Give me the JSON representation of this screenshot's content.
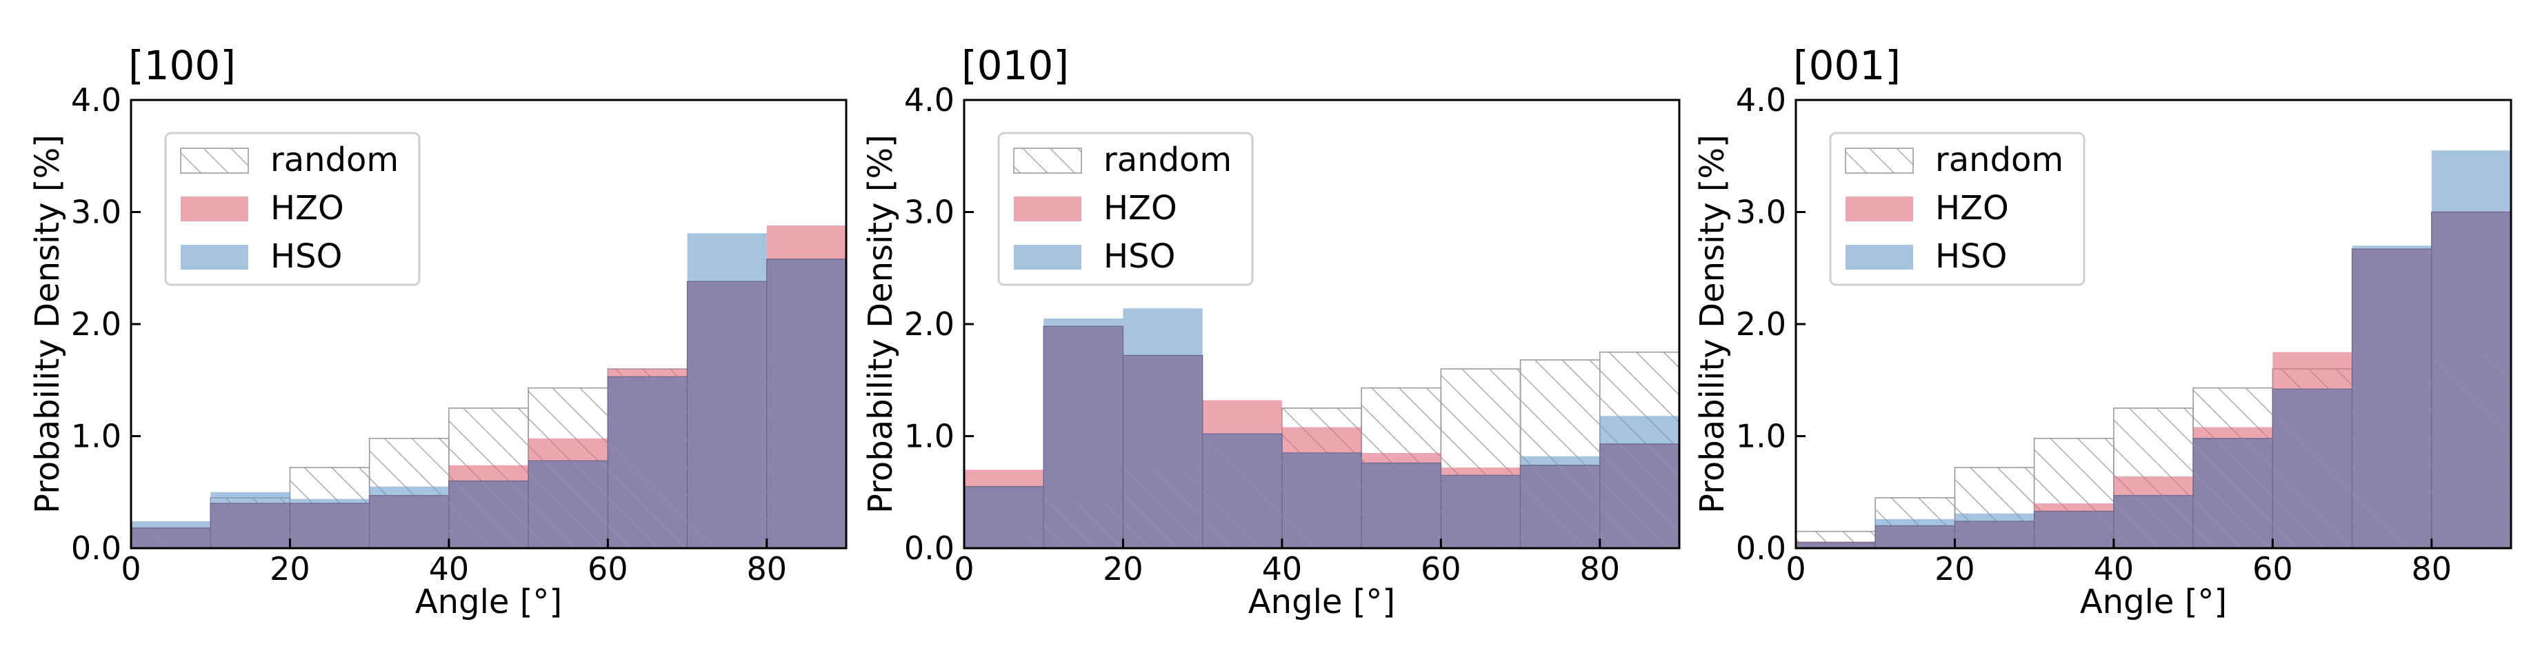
{
  "colors": {
    "random_stroke": "#9a9a9a",
    "hzo": "#e0707f",
    "hso": "#6fa0cc",
    "overlap": "#8a84ac",
    "overlap_edge": "#6e6a8e"
  },
  "chart_data": [
    {
      "type": "bar",
      "title": "[100]",
      "xlabel": "Angle [°]",
      "ylabel": "Probability Density [%]",
      "xlim": [
        0,
        90
      ],
      "ylim": [
        0,
        4
      ],
      "xticks": [
        "0",
        "20",
        "40",
        "60",
        "80"
      ],
      "yticks": [
        "0.0",
        "1.0",
        "2.0",
        "3.0",
        "4.0"
      ],
      "legend": [
        "random",
        "HZO",
        "HSO"
      ],
      "legend_position": "upper-left",
      "bin_edges": [
        0,
        10,
        20,
        30,
        40,
        50,
        60,
        70,
        80,
        90
      ],
      "series": [
        {
          "name": "random",
          "values": [
            0.15,
            0.45,
            0.72,
            0.98,
            1.25,
            1.43,
            1.6,
            1.68,
            1.75
          ]
        },
        {
          "name": "HZO",
          "values": [
            0.18,
            0.4,
            0.4,
            0.47,
            0.74,
            0.98,
            1.6,
            2.38,
            2.88
          ]
        },
        {
          "name": "HSO",
          "values": [
            0.24,
            0.5,
            0.44,
            0.55,
            0.6,
            0.78,
            1.53,
            2.81,
            2.58
          ]
        }
      ]
    },
    {
      "type": "bar",
      "title": "[010]",
      "xlabel": "Angle [°]",
      "ylabel": "Probability Density [%]",
      "xlim": [
        0,
        90
      ],
      "ylim": [
        0,
        4
      ],
      "xticks": [
        "0",
        "20",
        "40",
        "60",
        "80"
      ],
      "yticks": [
        "0.0",
        "1.0",
        "2.0",
        "3.0",
        "4.0"
      ],
      "legend": [
        "random",
        "HZO",
        "HSO"
      ],
      "legend_position": "upper-left",
      "bin_edges": [
        0,
        10,
        20,
        30,
        40,
        50,
        60,
        70,
        80,
        90
      ],
      "series": [
        {
          "name": "random",
          "values": [
            0.15,
            0.45,
            0.72,
            0.98,
            1.25,
            1.43,
            1.6,
            1.68,
            1.75
          ]
        },
        {
          "name": "HZO",
          "values": [
            0.7,
            1.98,
            1.72,
            1.32,
            1.08,
            0.85,
            0.72,
            0.74,
            0.93
          ]
        },
        {
          "name": "HSO",
          "values": [
            0.55,
            2.05,
            2.14,
            1.02,
            0.85,
            0.76,
            0.65,
            0.82,
            1.18
          ]
        }
      ]
    },
    {
      "type": "bar",
      "title": "[001]",
      "xlabel": "Angle [°]",
      "ylabel": "Probability Density [%]",
      "xlim": [
        0,
        90
      ],
      "ylim": [
        0,
        4
      ],
      "xticks": [
        "0",
        "20",
        "40",
        "60",
        "80"
      ],
      "yticks": [
        "0.0",
        "1.0",
        "2.0",
        "3.0",
        "4.0"
      ],
      "legend": [
        "random",
        "HZO",
        "HSO"
      ],
      "legend_position": "upper-left",
      "bin_edges": [
        0,
        10,
        20,
        30,
        40,
        50,
        60,
        70,
        80,
        90
      ],
      "series": [
        {
          "name": "random",
          "values": [
            0.15,
            0.45,
            0.72,
            0.98,
            1.25,
            1.43,
            1.6,
            1.68,
            1.75
          ]
        },
        {
          "name": "HZO",
          "values": [
            0.06,
            0.2,
            0.24,
            0.4,
            0.64,
            1.08,
            1.75,
            2.67,
            3.0
          ]
        },
        {
          "name": "HSO",
          "values": [
            0.05,
            0.26,
            0.31,
            0.33,
            0.47,
            0.98,
            1.42,
            2.7,
            3.55
          ]
        }
      ]
    }
  ]
}
